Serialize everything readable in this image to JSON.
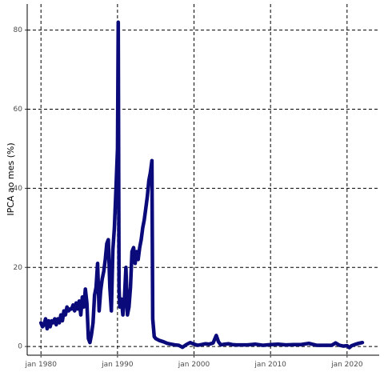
{
  "chart_data": {
    "type": "line",
    "title": "",
    "xlabel": "",
    "ylabel": "IPCA ao mes (%)",
    "xlim": [
      1978.2,
      2024.2
    ],
    "ylim": [
      -2.2,
      86.6
    ],
    "x_ticks": [
      {
        "value": 1980,
        "label": "jan 1980"
      },
      {
        "value": 1990,
        "label": "jan 1990"
      },
      {
        "value": 2000,
        "label": "jan 2000"
      },
      {
        "value": 2010,
        "label": "jan 2010"
      },
      {
        "value": 2020,
        "label": "jan 2020"
      }
    ],
    "y_ticks": [
      0,
      20,
      40,
      60,
      80
    ],
    "grid": true,
    "line_color": "#0a0a7a",
    "series": [
      {
        "x": [
          1980.0,
          1980.2,
          1980.4,
          1980.6,
          1980.8,
          1981.0,
          1981.2,
          1981.4,
          1981.6,
          1981.8,
          1982.0,
          1982.2,
          1982.4,
          1982.6,
          1982.8,
          1983.0,
          1983.2,
          1983.4,
          1983.6,
          1983.8,
          1984.0,
          1984.2,
          1984.4,
          1984.6,
          1984.8,
          1985.0,
          1985.2,
          1985.4,
          1985.6,
          1985.8,
          1986.0,
          1986.2,
          1986.4,
          1986.6,
          1986.8,
          1987.0,
          1987.2,
          1987.4,
          1987.6,
          1987.8,
          1988.0,
          1988.2,
          1988.4,
          1988.6,
          1988.8,
          1989.0,
          1989.2,
          1989.4,
          1989.6,
          1989.8,
          1990.0,
          1990.1,
          1990.2,
          1990.3,
          1990.5,
          1990.7,
          1990.9,
          1991.1,
          1991.3,
          1991.5,
          1991.7,
          1991.9,
          1992.1,
          1992.3,
          1992.5,
          1992.7,
          1992.9,
          1993.1,
          1993.3,
          1993.5,
          1993.7,
          1993.9,
          1994.1,
          1994.3,
          1994.5,
          1994.6,
          1994.8,
          1995.0,
          1995.5,
          1996.0,
          1996.5,
          1997.0,
          1997.5,
          1998.0,
          1998.5,
          1999.0,
          1999.5,
          2000.0,
          2000.5,
          2001.0,
          2001.5,
          2002.0,
          2002.5,
          2002.9,
          2003.2,
          2003.5,
          2004.0,
          2004.5,
          2005.0,
          2005.5,
          2006.0,
          2007.0,
          2008.0,
          2009.0,
          2010.0,
          2011.0,
          2012.0,
          2013.0,
          2014.0,
          2015.0,
          2016.0,
          2017.0,
          2018.0,
          2018.5,
          2019.0,
          2019.5,
          2020.0,
          2020.3,
          2020.6,
          2021.0,
          2021.5,
          2022.0
        ],
        "y": [
          6.0,
          5.0,
          5.5,
          7.0,
          4.5,
          6.5,
          5.0,
          6.5,
          6.0,
          7.0,
          5.5,
          7.0,
          6.0,
          8.0,
          6.5,
          9.0,
          8.0,
          10.0,
          9.0,
          9.5,
          9.5,
          10.5,
          9.0,
          11.0,
          9.5,
          11.5,
          8.0,
          12.5,
          10.0,
          14.5,
          11.0,
          2.0,
          1.0,
          3.0,
          6.0,
          13.0,
          15.0,
          21.0,
          9.0,
          14.0,
          17.0,
          19.0,
          22.0,
          26.0,
          27.0,
          15.0,
          9.0,
          24.5,
          30.0,
          40.0,
          50.0,
          82.0,
          15.0,
          10.0,
          12.0,
          8.0,
          12.0,
          20.0,
          8.0,
          10.0,
          15.0,
          24.0,
          25.0,
          21.0,
          24.0,
          22.0,
          25.0,
          27.0,
          30.0,
          32.0,
          35.0,
          38.0,
          42.0,
          44.0,
          47.0,
          7.0,
          2.5,
          2.0,
          1.5,
          1.2,
          0.8,
          0.6,
          0.4,
          0.3,
          -0.2,
          0.5,
          1.0,
          0.6,
          0.3,
          0.5,
          0.7,
          0.6,
          0.9,
          2.8,
          1.2,
          0.4,
          0.6,
          0.7,
          0.5,
          0.4,
          0.4,
          0.4,
          0.6,
          0.3,
          0.5,
          0.6,
          0.4,
          0.5,
          0.5,
          0.8,
          0.3,
          0.3,
          0.3,
          0.9,
          0.3,
          0.1,
          0.2,
          -0.3,
          0.2,
          0.5,
          0.8,
          1.0
        ]
      }
    ]
  }
}
